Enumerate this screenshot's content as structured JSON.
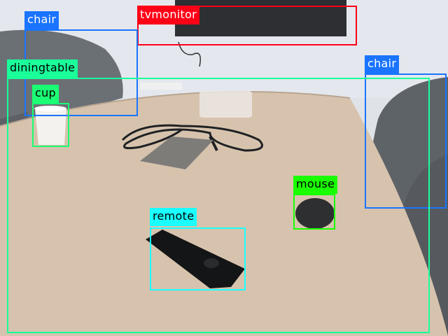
{
  "detections": [
    {
      "id": "tvmonitor",
      "label": "tvmonitor",
      "color": "#ff0017",
      "text_color": "light"
    },
    {
      "id": "chair-left",
      "label": "chair",
      "color": "#1a74ff",
      "text_color": "light"
    },
    {
      "id": "chair-right",
      "label": "chair",
      "color": "#1a74ff",
      "text_color": "light"
    },
    {
      "id": "diningtable",
      "label": "diningtable",
      "color": "#1aff9a",
      "text_color": "dark"
    },
    {
      "id": "cup",
      "label": "cup",
      "color": "#1aff74",
      "text_color": "dark"
    },
    {
      "id": "mouse",
      "label": "mouse",
      "color": "#1aff00",
      "text_color": "dark"
    },
    {
      "id": "remote",
      "label": "remote",
      "color": "#1affff",
      "text_color": "dark"
    }
  ]
}
